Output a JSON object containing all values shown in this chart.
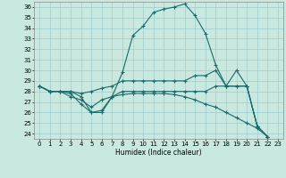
{
  "xlabel": "Humidex (Indice chaleur)",
  "xlim": [
    -0.5,
    23.5
  ],
  "ylim": [
    23.5,
    36.5
  ],
  "yticks": [
    24,
    25,
    26,
    27,
    28,
    29,
    30,
    31,
    32,
    33,
    34,
    35,
    36
  ],
  "xticks": [
    0,
    1,
    2,
    3,
    4,
    5,
    6,
    7,
    8,
    9,
    10,
    11,
    12,
    13,
    14,
    15,
    16,
    17,
    18,
    19,
    20,
    21,
    22,
    23
  ],
  "bg_color": "#c8e8e0",
  "grid_color": "#a0cccc",
  "line_color": "#1a6b6b",
  "lines": [
    [
      28.5,
      28.0,
      28.0,
      28.0,
      27.5,
      26.0,
      26.0,
      27.5,
      29.8,
      33.3,
      34.2,
      35.5,
      35.8,
      36.0,
      36.3,
      35.2,
      33.5,
      30.5,
      28.5,
      30.0,
      28.5,
      24.7,
      23.7
    ],
    [
      28.5,
      28.0,
      28.0,
      28.0,
      27.8,
      28.0,
      28.3,
      28.5,
      29.0,
      29.0,
      29.0,
      29.0,
      29.0,
      29.0,
      29.0,
      29.5,
      29.5,
      30.0,
      28.5,
      28.5,
      28.5,
      24.7,
      23.7
    ],
    [
      28.5,
      28.0,
      28.0,
      27.8,
      26.8,
      26.0,
      26.2,
      27.5,
      28.0,
      28.0,
      28.0,
      28.0,
      28.0,
      28.0,
      28.0,
      28.0,
      28.0,
      28.5,
      28.5,
      28.5,
      28.5,
      24.7,
      23.7
    ],
    [
      28.5,
      28.0,
      28.0,
      27.5,
      27.2,
      26.5,
      27.2,
      27.5,
      27.7,
      27.8,
      27.8,
      27.8,
      27.8,
      27.7,
      27.5,
      27.2,
      26.8,
      26.5,
      26.0,
      25.5,
      25.0,
      24.5,
      23.7
    ]
  ]
}
